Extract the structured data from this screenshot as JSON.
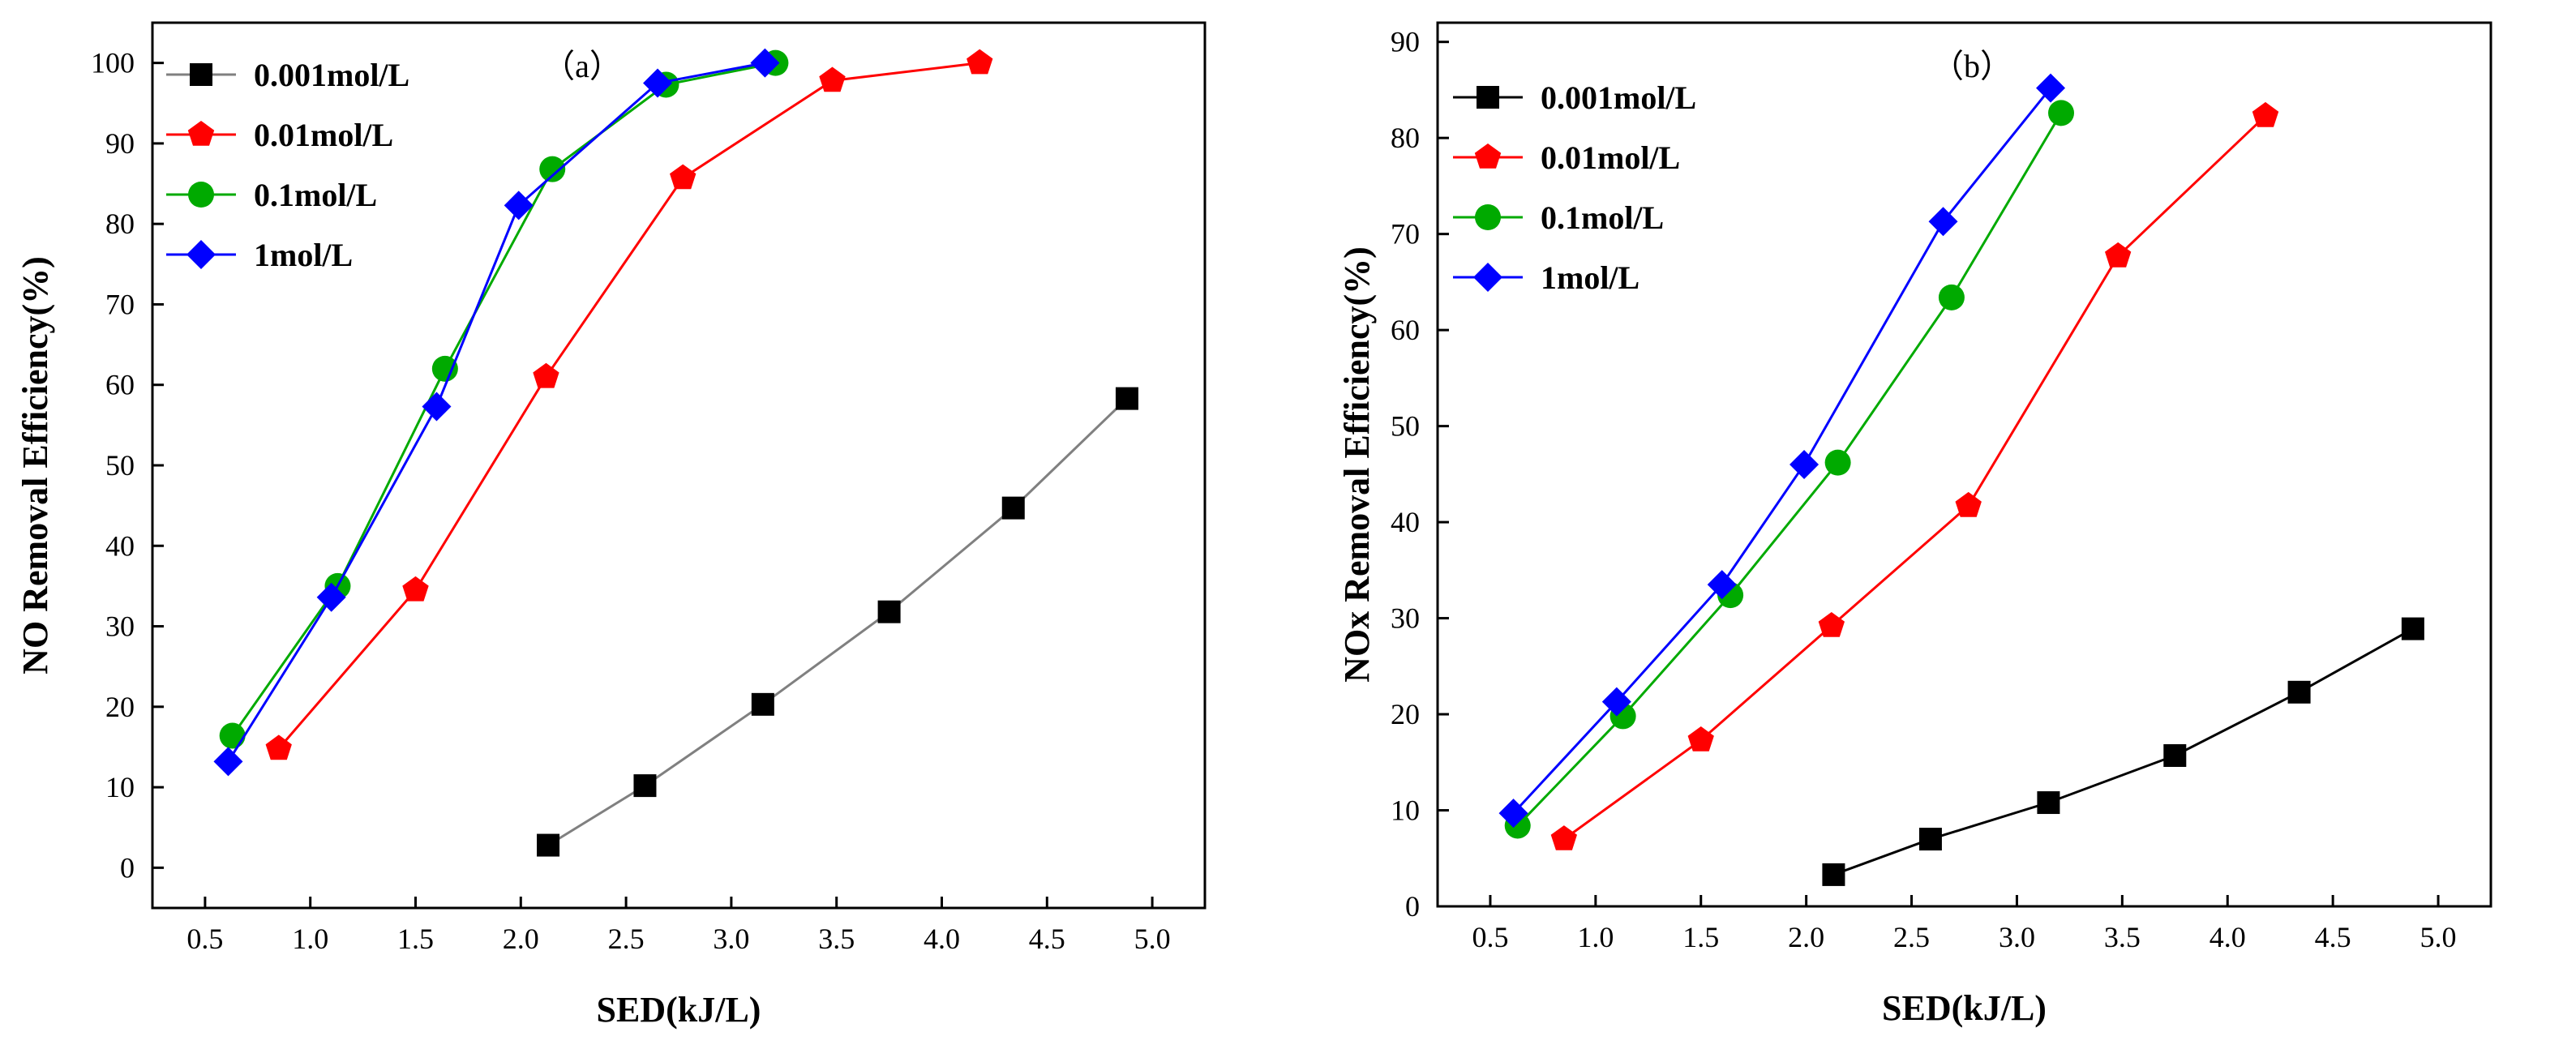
{
  "chart_data": [
    {
      "type": "line",
      "panel_label": "（a）",
      "xlabel": "SED(kJ/L)",
      "ylabel": "NO Removal Efficiency(%)",
      "xlim": [
        0.25,
        5.25
      ],
      "ylim": [
        -5,
        105
      ],
      "xticks": [
        0.5,
        1.0,
        1.5,
        2.0,
        2.5,
        3.0,
        3.5,
        4.0,
        4.5,
        5.0
      ],
      "xtick_labels": [
        "0.5",
        "1.0",
        "1.5",
        "2.0",
        "2.5",
        "3.0",
        "3.5",
        "4.0",
        "4.5",
        "5.0"
      ],
      "yticks": [
        0,
        10,
        20,
        30,
        40,
        50,
        60,
        70,
        80,
        90,
        100
      ],
      "ytick_labels": [
        "0",
        "10",
        "20",
        "30",
        "40",
        "50",
        "60",
        "70",
        "80",
        "90",
        "100"
      ],
      "legend_position": "top-left",
      "series": [
        {
          "name": "0.001mol/L",
          "color": "#000000",
          "line_color": "#808080",
          "marker": "square",
          "x": [
            2.13,
            2.59,
            3.15,
            3.75,
            4.34,
            4.88
          ],
          "y": [
            2.8,
            10.2,
            20.3,
            31.8,
            44.7,
            58.3
          ]
        },
        {
          "name": "0.01mol/L",
          "color": "#ff0000",
          "line_color": "#ff0000",
          "marker": "pentagon",
          "x": [
            0.85,
            1.5,
            2.12,
            2.77,
            3.48,
            4.18
          ],
          "y": [
            14.8,
            34.5,
            61.0,
            85.7,
            97.8,
            100
          ]
        },
        {
          "name": "0.1mol/L",
          "color": "#00aa00",
          "line_color": "#00aa00",
          "marker": "circle",
          "x": [
            0.63,
            1.13,
            1.64,
            2.15,
            2.69,
            3.21
          ],
          "y": [
            16.4,
            35.0,
            62.0,
            86.8,
            97.3,
            100
          ]
        },
        {
          "name": "1mol/L",
          "color": "#0000ff",
          "line_color": "#0000ff",
          "marker": "diamond",
          "x": [
            0.61,
            1.1,
            1.6,
            1.99,
            2.65,
            3.16
          ],
          "y": [
            13.2,
            33.6,
            57.3,
            82.3,
            97.5,
            100
          ]
        }
      ]
    },
    {
      "type": "line",
      "panel_label": "（b）",
      "xlabel": "SED(kJ/L)",
      "ylabel": "NOx Removal Efficiency(%)",
      "xlim": [
        0.25,
        5.25
      ],
      "ylim": [
        0,
        92
      ],
      "xticks": [
        0.5,
        1.0,
        1.5,
        2.0,
        2.5,
        3.0,
        3.5,
        4.0,
        4.5,
        5.0
      ],
      "xtick_labels": [
        "0.5",
        "1.0",
        "1.5",
        "2.0",
        "2.5",
        "3.0",
        "3.5",
        "4.0",
        "4.5",
        "5.0"
      ],
      "yticks": [
        0,
        10,
        20,
        30,
        40,
        50,
        60,
        70,
        80,
        90
      ],
      "ytick_labels": [
        "0",
        "10",
        "20",
        "30",
        "40",
        "50",
        "60",
        "70",
        "80",
        "90"
      ],
      "legend_position": "top-left",
      "series": [
        {
          "name": "0.001mol/L",
          "color": "#000000",
          "line_color": "#000000",
          "marker": "square",
          "x": [
            2.13,
            2.59,
            3.15,
            3.75,
            4.34,
            4.88
          ],
          "y": [
            3.3,
            7.0,
            10.8,
            15.7,
            22.3,
            28.9
          ]
        },
        {
          "name": "0.01mol/L",
          "color": "#ff0000",
          "line_color": "#ff0000",
          "marker": "pentagon",
          "x": [
            0.85,
            1.5,
            2.12,
            2.77,
            3.48,
            4.18
          ],
          "y": [
            7.0,
            17.3,
            29.2,
            41.7,
            67.7,
            82.3
          ]
        },
        {
          "name": "0.1mol/L",
          "color": "#00aa00",
          "line_color": "#00aa00",
          "marker": "circle",
          "x": [
            0.63,
            1.13,
            1.64,
            2.15,
            2.69,
            3.21
          ],
          "y": [
            8.4,
            19.8,
            32.4,
            46.2,
            63.4,
            82.6
          ]
        },
        {
          "name": "1mol/L",
          "color": "#0000ff",
          "line_color": "#0000ff",
          "marker": "diamond",
          "x": [
            0.61,
            1.1,
            1.6,
            1.99,
            2.65,
            3.16
          ],
          "y": [
            9.7,
            21.3,
            33.5,
            46.0,
            71.3,
            85.2
          ]
        }
      ]
    }
  ]
}
